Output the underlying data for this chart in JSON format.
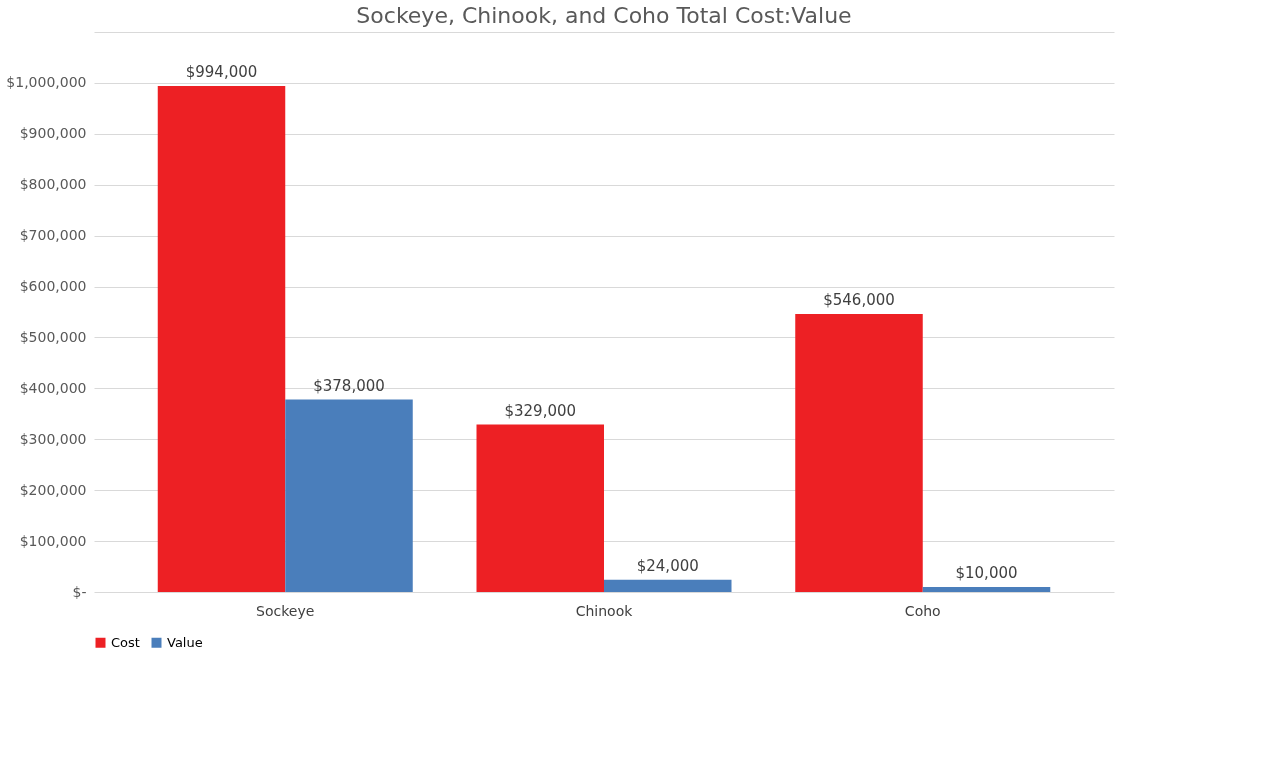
{
  "chart_data": {
    "type": "bar",
    "title": "Sockeye, Chinook, and Coho Total Cost:Value",
    "categories": [
      "Sockeye",
      "Chinook",
      "Coho"
    ],
    "series": [
      {
        "name": "Cost",
        "color": "#ed2024",
        "values": [
          994000,
          329000,
          546000
        ],
        "value_labels": [
          "$994,000",
          "$329,000",
          "$546,000"
        ]
      },
      {
        "name": "Value",
        "color": "#4a7ebb",
        "values": [
          378000,
          24000,
          10000
        ],
        "value_labels": [
          "$378,000",
          "$24,000",
          "$10,000"
        ]
      }
    ],
    "ylim": [
      0,
      1100000
    ],
    "yticks": [
      {
        "value": 0,
        "label": "$-"
      },
      {
        "value": 100000,
        "label": "$100,000"
      },
      {
        "value": 200000,
        "label": "$200,000"
      },
      {
        "value": 300000,
        "label": "$300,000"
      },
      {
        "value": 400000,
        "label": "$400,000"
      },
      {
        "value": 500000,
        "label": "$500,000"
      },
      {
        "value": 600000,
        "label": "$600,000"
      },
      {
        "value": 700000,
        "label": "$700,000"
      },
      {
        "value": 800000,
        "label": "$800,000"
      },
      {
        "value": 900000,
        "label": "$900,000"
      },
      {
        "value": 1000000,
        "label": "$1,000,000"
      },
      {
        "value": 1100000,
        "label": null
      }
    ],
    "grid": "y",
    "legend": "bottom"
  }
}
